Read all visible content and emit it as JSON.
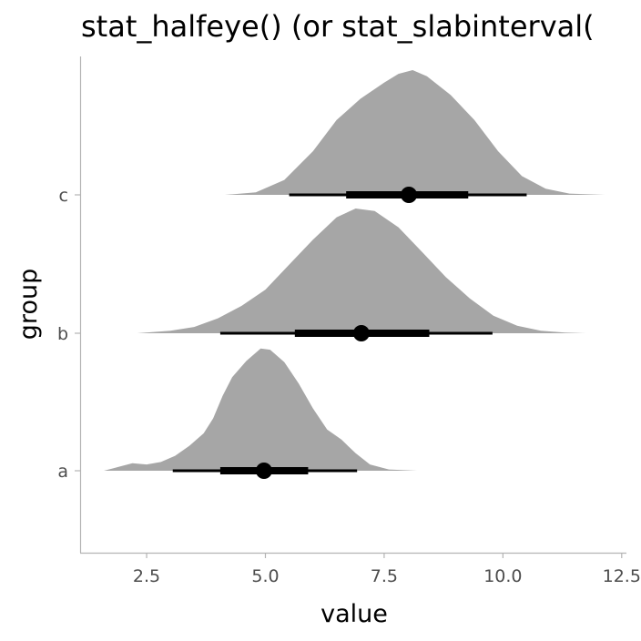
{
  "chart_data": {
    "type": "halfeye",
    "title": "stat_halfeye() (or stat_slabinterval(",
    "xlabel": "value",
    "ylabel": "group",
    "x_ticks": [
      "2.5",
      "5.0",
      "7.5",
      "10.0",
      "12.5"
    ],
    "xlim": [
      1.1,
      12.6
    ],
    "categories": [
      "a",
      "b",
      "c"
    ],
    "grid": false,
    "colors": {
      "slab": "#a6a6a6",
      "interval": "#000000",
      "axis": "#b3b3b3"
    },
    "series": [
      {
        "category": "a",
        "point": 4.97,
        "interval_66": [
          4.05,
          5.9
        ],
        "interval_95": [
          3.05,
          6.93
        ],
        "density": [
          [
            1.6,
            0.0
          ],
          [
            1.9,
            0.03
          ],
          [
            2.2,
            0.06
          ],
          [
            2.5,
            0.05
          ],
          [
            2.8,
            0.07
          ],
          [
            3.1,
            0.12
          ],
          [
            3.4,
            0.2
          ],
          [
            3.7,
            0.3
          ],
          [
            3.9,
            0.42
          ],
          [
            4.1,
            0.6
          ],
          [
            4.3,
            0.75
          ],
          [
            4.6,
            0.88
          ],
          [
            4.9,
            0.98
          ],
          [
            5.1,
            0.97
          ],
          [
            5.4,
            0.87
          ],
          [
            5.7,
            0.7
          ],
          [
            6.0,
            0.5
          ],
          [
            6.3,
            0.33
          ],
          [
            6.6,
            0.25
          ],
          [
            6.9,
            0.14
          ],
          [
            7.2,
            0.05
          ],
          [
            7.6,
            0.01
          ],
          [
            8.2,
            0.0
          ]
        ]
      },
      {
        "category": "b",
        "point": 7.02,
        "interval_66": [
          5.62,
          8.45
        ],
        "interval_95": [
          4.05,
          9.78
        ],
        "density": [
          [
            2.3,
            0.0
          ],
          [
            3.0,
            0.02
          ],
          [
            3.5,
            0.05
          ],
          [
            4.0,
            0.12
          ],
          [
            4.5,
            0.22
          ],
          [
            5.0,
            0.35
          ],
          [
            5.5,
            0.55
          ],
          [
            6.0,
            0.75
          ],
          [
            6.5,
            0.93
          ],
          [
            6.9,
            1.0
          ],
          [
            7.3,
            0.98
          ],
          [
            7.8,
            0.85
          ],
          [
            8.3,
            0.65
          ],
          [
            8.8,
            0.45
          ],
          [
            9.3,
            0.28
          ],
          [
            9.8,
            0.14
          ],
          [
            10.3,
            0.06
          ],
          [
            10.8,
            0.02
          ],
          [
            11.3,
            0.005
          ],
          [
            11.75,
            0.0
          ]
        ]
      },
      {
        "category": "c",
        "point": 8.02,
        "interval_66": [
          6.7,
          9.27
        ],
        "interval_95": [
          5.5,
          10.5
        ],
        "density": [
          [
            4.15,
            0.0
          ],
          [
            4.8,
            0.02
          ],
          [
            5.4,
            0.12
          ],
          [
            6.0,
            0.35
          ],
          [
            6.5,
            0.6
          ],
          [
            7.0,
            0.77
          ],
          [
            7.5,
            0.9
          ],
          [
            7.8,
            0.97
          ],
          [
            8.1,
            1.0
          ],
          [
            8.4,
            0.95
          ],
          [
            8.9,
            0.8
          ],
          [
            9.4,
            0.6
          ],
          [
            9.9,
            0.35
          ],
          [
            10.4,
            0.15
          ],
          [
            10.9,
            0.05
          ],
          [
            11.4,
            0.01
          ],
          [
            12.15,
            0.0
          ]
        ]
      }
    ]
  }
}
